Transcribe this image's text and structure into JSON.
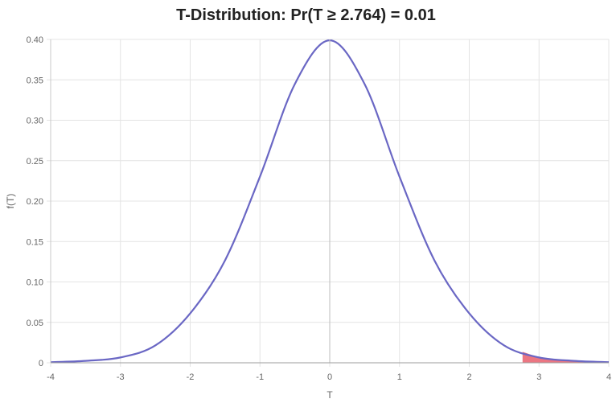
{
  "chart_data": {
    "type": "area",
    "title": "T-Distribution: Pr(T ≥ 2.764) = 0.01",
    "xlabel": "T",
    "ylabel": "f(T)",
    "xlim": [
      -4,
      4
    ],
    "ylim": [
      0,
      0.4
    ],
    "x_ticks": [
      -4,
      -3,
      -2,
      -1,
      0,
      1,
      2,
      3,
      4
    ],
    "x_tick_labels": [
      "-4",
      "-3",
      "-2",
      "-1",
      "0",
      "1",
      "2",
      "3",
      "4"
    ],
    "y_ticks": [
      0,
      0.05,
      0.1,
      0.15,
      0.2,
      0.25,
      0.3,
      0.35,
      0.4
    ],
    "y_tick_labels": [
      "0",
      "0.05",
      "0.10",
      "0.15",
      "0.20",
      "0.25",
      "0.30",
      "0.35",
      "0.40"
    ],
    "grid": true,
    "legend": "none",
    "series": [
      {
        "x": [
          -4,
          -3.5,
          -3,
          -2.5,
          -2,
          -1.5,
          -1,
          -0.5,
          0,
          0.5,
          1,
          1.5,
          2,
          2.5,
          3,
          3.5,
          4
        ],
        "y": [
          0.0008,
          0.0024,
          0.0066,
          0.0214,
          0.0611,
          0.1268,
          0.2303,
          0.3448,
          0.3989,
          0.3448,
          0.2303,
          0.1268,
          0.0611,
          0.0214,
          0.0066,
          0.0024,
          0.0008
        ],
        "color": "#6a67c4"
      }
    ],
    "shaded_region": {
      "x_from": 2.764,
      "x_to": 4,
      "color": "#ea6f7b"
    }
  }
}
